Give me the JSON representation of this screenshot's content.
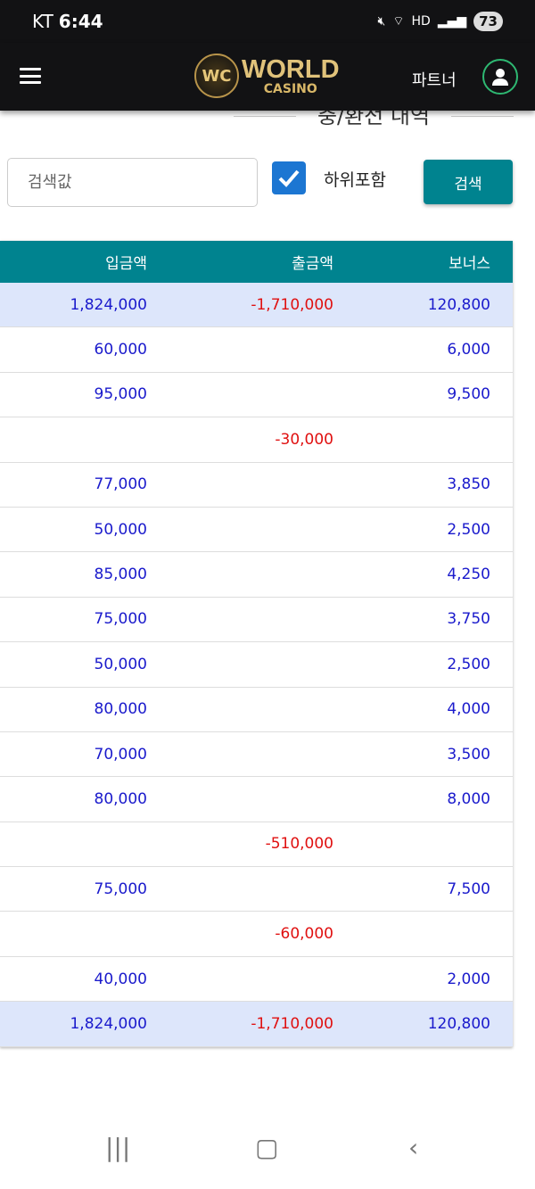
{
  "status": {
    "carrier": "KT",
    "time": "6:44",
    "battery": "73"
  },
  "header": {
    "partner_label": "파트너",
    "logo_mark": "WC",
    "logo_text": "WORLD",
    "logo_sub": "CASINO"
  },
  "page_title": "충/환전 내역",
  "filter": {
    "search_placeholder": "검색값",
    "include_sub_label": "하위포함",
    "include_sub_checked": true,
    "search_button": "검색"
  },
  "colors": {
    "accent": "#00838f",
    "deposit": "#1a1acc",
    "withdraw": "#e01010",
    "summary_bg": "#dde6fb"
  },
  "table": {
    "headers": [
      "입금액",
      "출금액",
      "보너스"
    ],
    "summary_top": [
      "1,824,000",
      "-1,710,000",
      "120,800"
    ],
    "rows": [
      [
        "60,000",
        "",
        "6,000"
      ],
      [
        "95,000",
        "",
        "9,500"
      ],
      [
        "",
        "-30,000",
        ""
      ],
      [
        "77,000",
        "",
        "3,850"
      ],
      [
        "50,000",
        "",
        "2,500"
      ],
      [
        "85,000",
        "",
        "4,250"
      ],
      [
        "75,000",
        "",
        "3,750"
      ],
      [
        "50,000",
        "",
        "2,500"
      ],
      [
        "80,000",
        "",
        "4,000"
      ],
      [
        "70,000",
        "",
        "3,500"
      ],
      [
        "80,000",
        "",
        "8,000"
      ],
      [
        "",
        "-510,000",
        ""
      ],
      [
        "75,000",
        "",
        "7,500"
      ],
      [
        "",
        "-60,000",
        ""
      ],
      [
        "40,000",
        "",
        "2,000"
      ]
    ],
    "summary_bottom": [
      "1,824,000",
      "-1,710,000",
      "120,800"
    ]
  }
}
